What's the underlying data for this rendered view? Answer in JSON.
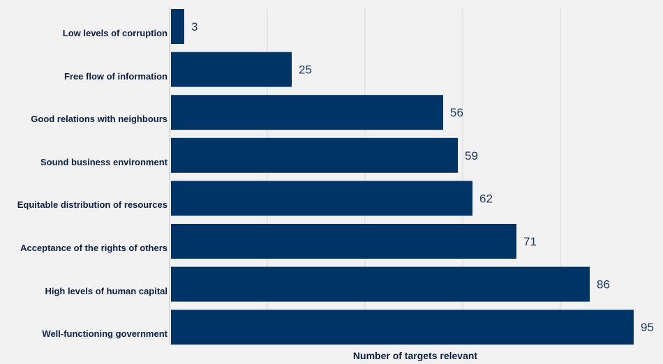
{
  "colors": {
    "bar": "#003366",
    "grid": "#d6d6d6",
    "axis": "#bfbfbf",
    "label": "#0b1f45",
    "value": "#1f3a63"
  },
  "chart_data": {
    "type": "bar",
    "orientation": "horizontal",
    "categories": [
      "Low levels of corruption",
      "Free flow of information",
      "Good relations with neighbours",
      "Sound business environment",
      "Equitable distribution of resources",
      "Acceptance of the rights of others",
      "High levels of human capital",
      "Well-functioning government"
    ],
    "values": [
      3,
      25,
      56,
      59,
      62,
      71,
      86,
      95
    ],
    "xlabel": "Number of targets relevant",
    "ylabel": "",
    "xlim": [
      0,
      100
    ],
    "grid": true,
    "data_labels": true
  }
}
